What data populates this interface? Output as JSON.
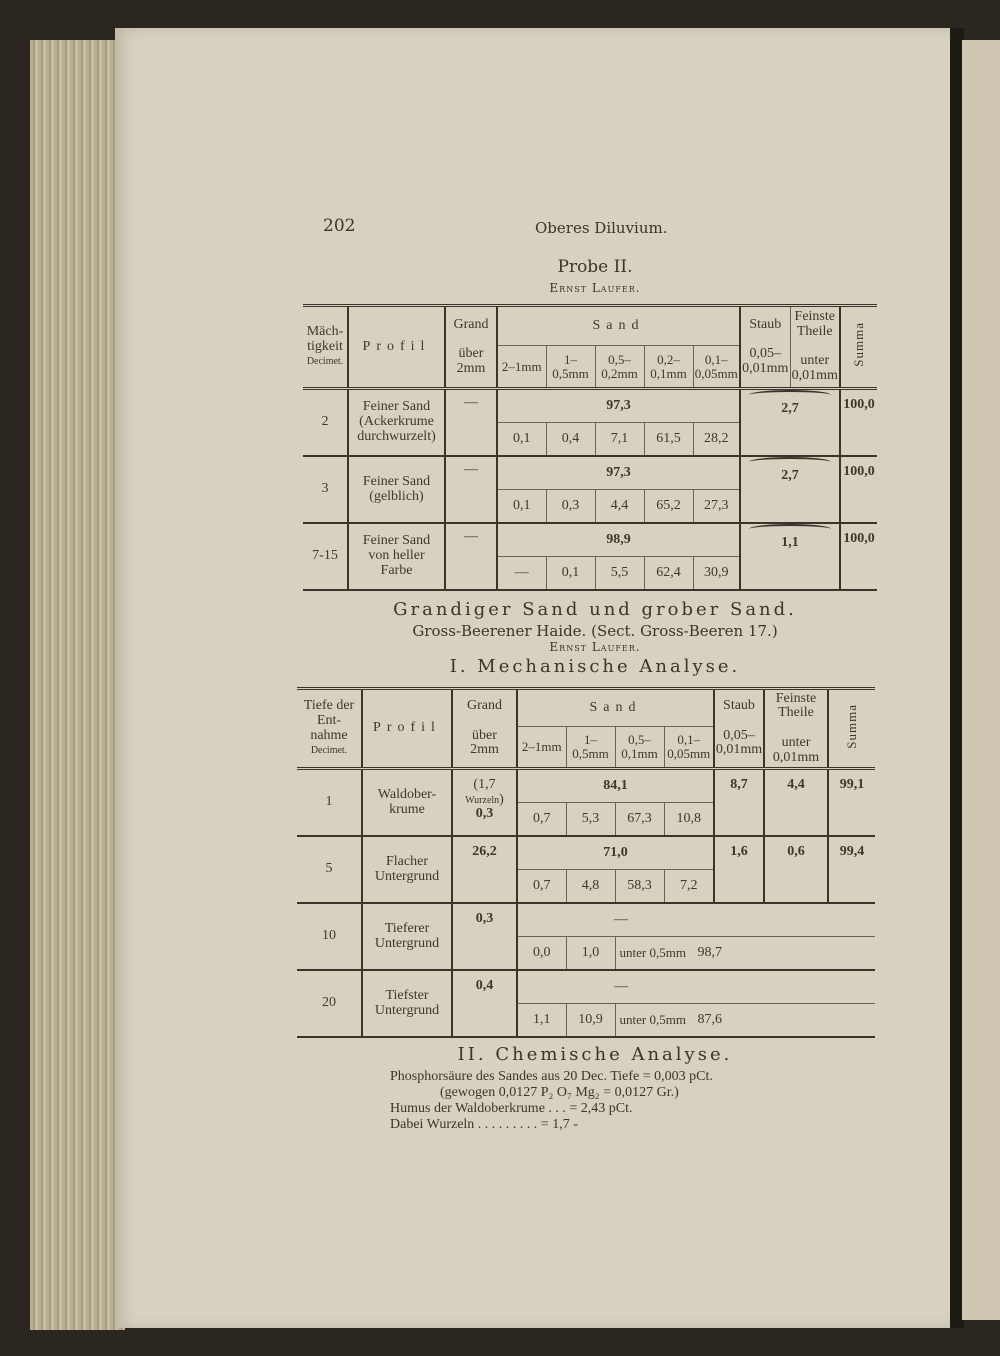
{
  "page_number": "202",
  "running_head": "Oberes Diluvium.",
  "probe": {
    "title": "Probe II.",
    "author": "Ernst Laufer.",
    "headers": {
      "depth": [
        "Mäch-",
        "tigkeit",
        "Decimet."
      ],
      "profil": "Profil",
      "grand": [
        "Grand",
        "über",
        "2mm"
      ],
      "sand": "Sand",
      "sand_fractions": [
        "2–1mm",
        "1–0,5mm",
        "0,5–0,2mm",
        "0,2–0,1mm",
        "0,1–0,05mm"
      ],
      "staub": [
        "Staub",
        "0,05–0,01mm"
      ],
      "feinste": [
        "Feinste Theile",
        "unter 0,01mm"
      ],
      "summa": "Summa"
    },
    "rows": [
      {
        "depth": "2",
        "profil": "Feiner Sand (Ackerkrume durchwurzelt)",
        "grand": "—",
        "sand_total": "97,3",
        "fractions": [
          "0,1",
          "0,4",
          "7,1",
          "61,5",
          "28,2"
        ],
        "staub_feinste": "2,7",
        "summa": "100,0"
      },
      {
        "depth": "3",
        "profil": "Feiner Sand (gelblich)",
        "grand": "—",
        "sand_total": "97,3",
        "fractions": [
          "0,1",
          "0,3",
          "4,4",
          "65,2",
          "27,3"
        ],
        "staub_feinste": "2,7",
        "summa": "100,0"
      },
      {
        "depth": "7-15",
        "profil": "Feiner Sand von heller Farbe",
        "grand": "—",
        "sand_total": "98,9",
        "fractions": [
          "—",
          "0,1",
          "5,5",
          "62,4",
          "30,9"
        ],
        "staub_feinste": "1,1",
        "summa": "100,0"
      }
    ]
  },
  "section2": {
    "title": "Grandiger Sand und grober Sand.",
    "subtitle": "Gross-Beerener Haide. (Sect. Gross-Beeren 17.)",
    "author": "Ernst Laufer.",
    "mech_title": "I. Mechanische Analyse.",
    "headers": {
      "depth": [
        "Tiefe der",
        "Ent-",
        "nahme",
        "Decimet."
      ],
      "profil": "Profil",
      "grand": [
        "Grand",
        "über",
        "2mm"
      ],
      "sand": "Sand",
      "sand_fractions": [
        "2–1mm",
        "1–0,5mm",
        "0,5–0,1mm",
        "0,1–0,05mm"
      ],
      "staub": [
        "Staub",
        "0,05–0,01mm"
      ],
      "feinste": [
        "Feinste Theile",
        "unter 0,01mm"
      ],
      "summa": "Summa"
    },
    "rows": [
      {
        "depth": "1",
        "profil": "Waldober-krume",
        "grand_note": "1,7",
        "grand_note_label": "Wurzeln",
        "grand": "0,3",
        "sand_total": "84,1",
        "fractions": [
          "0,7",
          "5,3",
          "67,3",
          "10,8"
        ],
        "staub": "8,7",
        "feinste": "4,4",
        "summa": "99,1"
      },
      {
        "depth": "5",
        "profil": "Flacher Untergrund",
        "grand": "26,2",
        "sand_total": "71,0",
        "fractions": [
          "0,7",
          "4,8",
          "58,3",
          "7,2"
        ],
        "staub": "1,6",
        "feinste": "0,6",
        "summa": "99,4"
      },
      {
        "depth": "10",
        "profil": "Tieferer Untergrund",
        "grand": "0,3",
        "sand_total": "—",
        "fractions": [
          "0,0",
          "1,0"
        ],
        "unter_label": "unter 0,5mm",
        "unter_value": "98,7"
      },
      {
        "depth": "20",
        "profil": "Tiefster Untergrund",
        "grand": "0,4",
        "sand_total": "—",
        "fractions": [
          "1,1",
          "10,9"
        ],
        "unter_label": "unter 0,5mm",
        "unter_value": "87,6"
      }
    ],
    "chem_title": "II. Chemische Analyse.",
    "chem_lines": [
      "Phosphorsäure des Sandes aus 20 Dec. Tiefe = 0,003 pCt.",
      "(gewogen 0,0127 P₂ O₇ Mg₂ = 0,0127 Gr.)",
      "Humus der Waldoberkrume . . . = 2,43 pCt.",
      "Dabei Wurzeln . . . . . . . . . = 1,7 -"
    ]
  }
}
